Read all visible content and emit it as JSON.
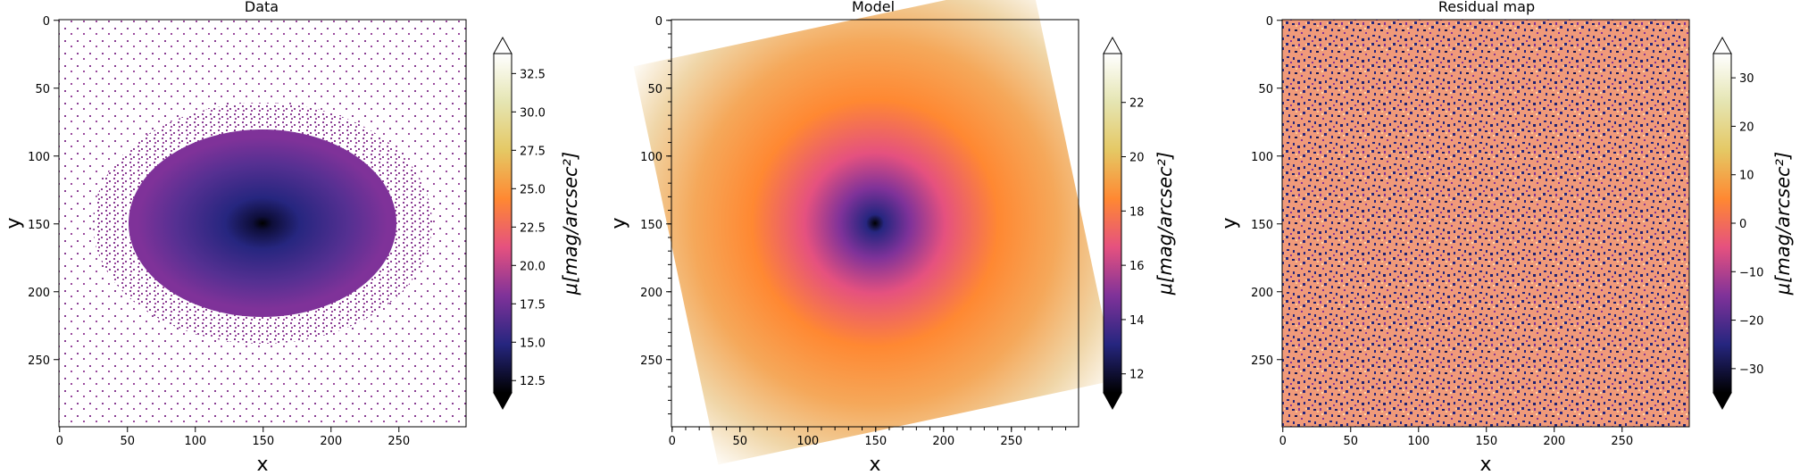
{
  "chart_data": [
    {
      "type": "heatmap",
      "title": "Data",
      "xlabel": "x",
      "ylabel": "y",
      "xlim": [
        0,
        299
      ],
      "ylim": [
        299,
        0
      ],
      "xticks": [
        "0",
        "50",
        "100",
        "150",
        "200",
        "250"
      ],
      "yticks": [
        "0",
        "50",
        "100",
        "150",
        "200",
        "250"
      ],
      "colormap": "CMRmap",
      "colorbar": {
        "label": "μ[mag/arcsec²]",
        "range": [
          11.7,
          33.8
        ],
        "ticks": [
          "12.5",
          "15.0",
          "17.5",
          "20.0",
          "22.5",
          "25.0",
          "27.5",
          "30.0",
          "32.5"
        ],
        "extend": "both"
      },
      "description_values": {
        "center": [
          150,
          150
        ],
        "core_value": 12.5,
        "sky_value": 33.5,
        "noise_pattern": "speckled outer halo"
      }
    },
    {
      "type": "heatmap",
      "title": "Model",
      "xlabel": "x",
      "ylabel": "y",
      "xlim": [
        0,
        299
      ],
      "ylim": [
        299,
        0
      ],
      "xticks": [
        "0",
        "50",
        "100",
        "150",
        "200",
        "250"
      ],
      "yticks": [
        "0",
        "50",
        "100",
        "150",
        "200",
        "250"
      ],
      "colormap": "CMRmap",
      "colorbar": {
        "label": "μ[mag/arcsec²]",
        "range": [
          11.3,
          23.8
        ],
        "ticks": [
          "12",
          "14",
          "16",
          "18",
          "20",
          "22"
        ],
        "extend": "both"
      },
      "description_values": {
        "center": [
          150,
          150
        ],
        "core_value": 11.5,
        "edge_value": 23.8
      }
    },
    {
      "type": "heatmap",
      "title": "Residual map",
      "xlabel": "x",
      "ylabel": "y",
      "xlim": [
        0,
        299
      ],
      "ylim": [
        299,
        0
      ],
      "xticks": [
        "0",
        "50",
        "100",
        "150",
        "200",
        "250"
      ],
      "yticks": [
        "0",
        "50",
        "100",
        "150",
        "200",
        "250"
      ],
      "colormap": "CMRmap",
      "colorbar": {
        "label": "μ[mag/arcsec²]",
        "range": [
          -35,
          35
        ],
        "ticks": [
          "−30",
          "−20",
          "−10",
          "0",
          "10",
          "20",
          "30"
        ],
        "extend": "both"
      },
      "description_values": {
        "pattern": "random noise",
        "dominant_values": [
          -15,
          22
        ]
      }
    }
  ],
  "colors": {
    "cmap_stops": [
      "#000000",
      "#26267f",
      "#7f3299",
      "#e5517f",
      "#ff8832",
      "#e5c864",
      "#e5e5b2",
      "#ffffff"
    ]
  }
}
